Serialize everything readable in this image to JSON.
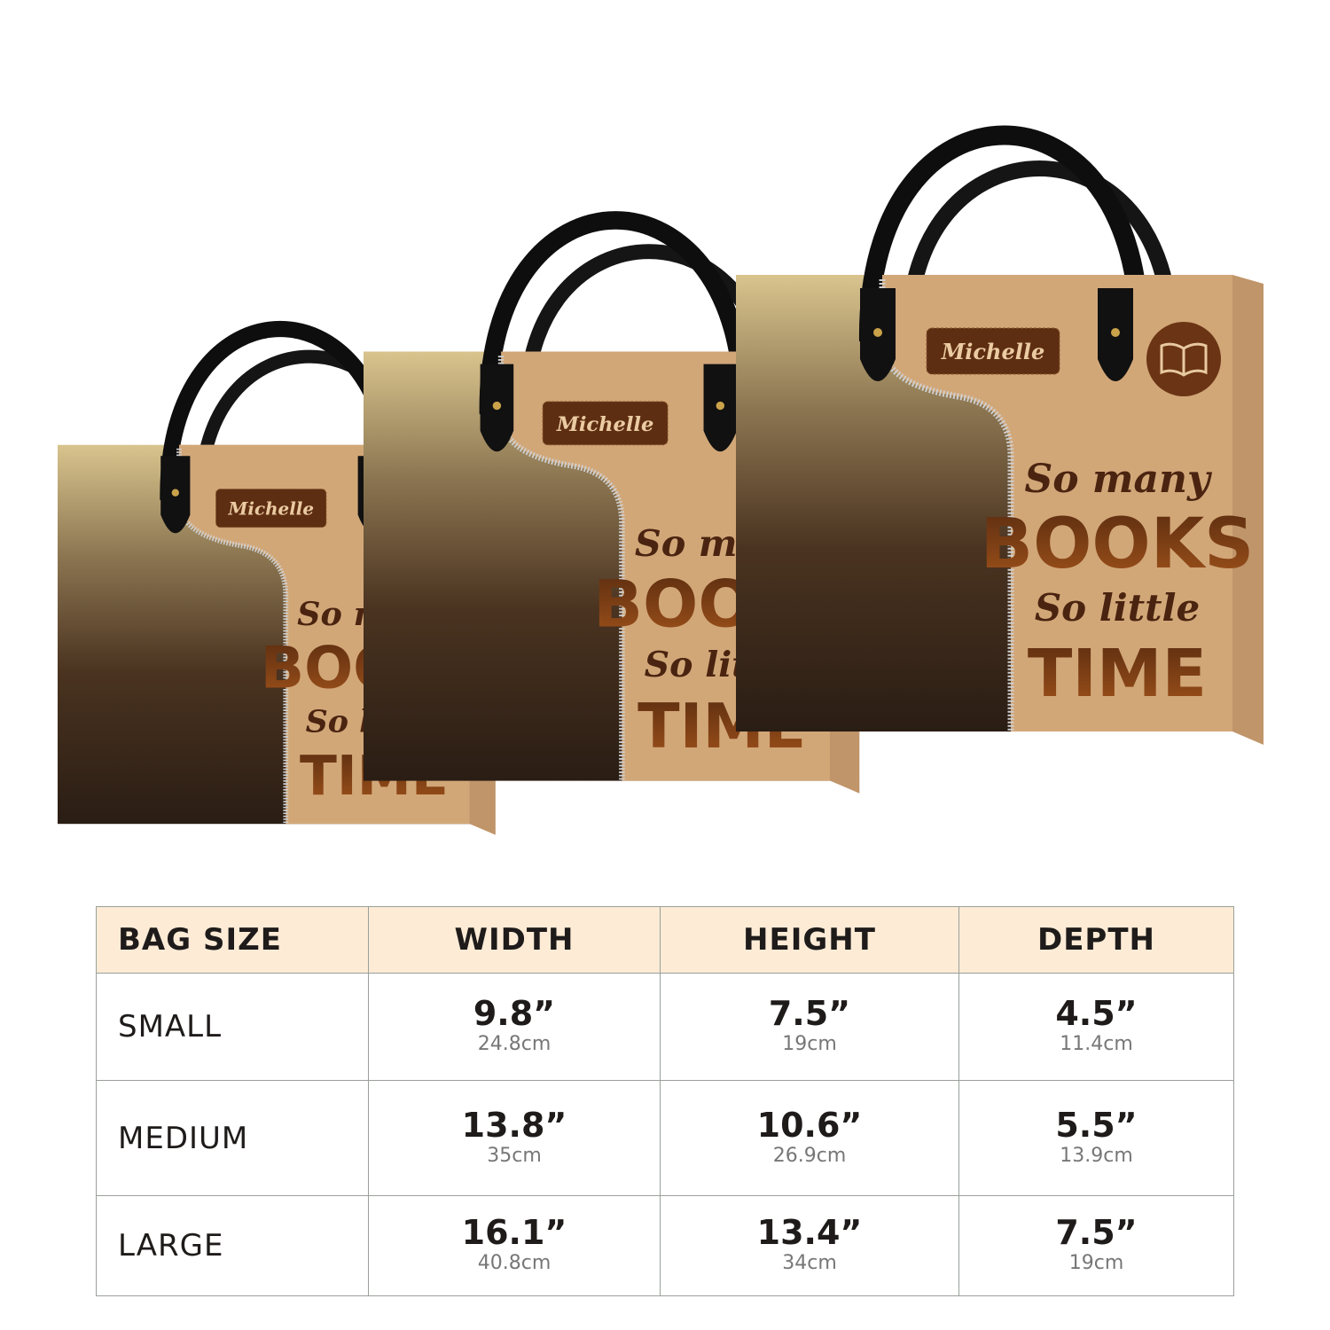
{
  "bags": [
    {
      "size": "large",
      "name_tag": "Michelle",
      "line1": "So many",
      "line2": "BOOKS",
      "line3": "So little",
      "line4": "TIME"
    },
    {
      "size": "medium",
      "name_tag": "Michelle",
      "line1": "So many",
      "line2": "BOOKS",
      "line3": "So little",
      "line4": "TIME"
    },
    {
      "size": "small",
      "name_tag": "Michelle",
      "line1": "So many",
      "line2": "BOOKS",
      "line3": "So little",
      "line4": "TIME"
    }
  ],
  "colors": {
    "leather": "#d2a778",
    "text_brown": "#5a2c10",
    "handle": "#111111",
    "header_bg": "#fdebd6"
  },
  "table": {
    "headers": [
      "BAG SIZE",
      "WIDTH",
      "HEIGHT",
      "DEPTH"
    ],
    "rows": [
      {
        "size": "SMALL",
        "width_in": "9.8”",
        "width_cm": "24.8cm",
        "height_in": "7.5”",
        "height_cm": "19cm",
        "depth_in": "4.5”",
        "depth_cm": "11.4cm"
      },
      {
        "size": "MEDIUM",
        "width_in": "13.8”",
        "width_cm": "35cm",
        "height_in": "10.6”",
        "height_cm": "26.9cm",
        "depth_in": "5.5”",
        "depth_cm": "13.9cm"
      },
      {
        "size": "LARGE",
        "width_in": "16.1”",
        "width_cm": "40.8cm",
        "height_in": "13.4”",
        "height_cm": "34cm",
        "depth_in": "7.5”",
        "depth_cm": "19cm"
      }
    ]
  }
}
